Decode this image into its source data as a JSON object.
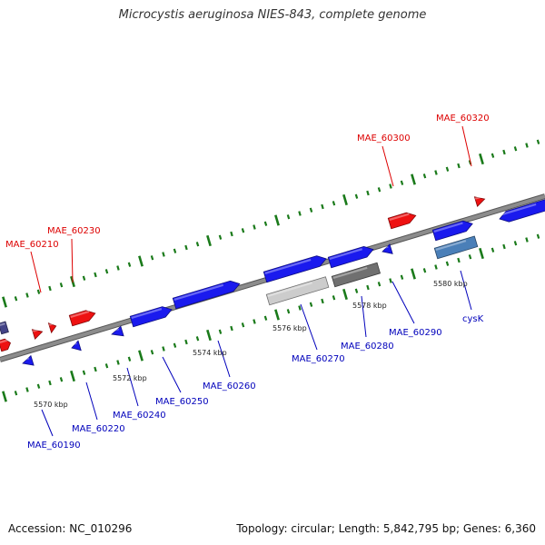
{
  "title": "Microcystis aeruginosa NIES-843, complete genome",
  "footer": {
    "accession": "Accession: NC_010296",
    "summary": "Topology: circular; Length: 5,842,795 bp; Genes: 6,360"
  },
  "colors": {
    "forward_gene": "#ee1111",
    "reverse_gene": "#1a1aee",
    "highlight_light": "#cccccc",
    "highlight_dark": "#707070",
    "highlight_blue": "#4a7fb8",
    "backbone": "#8c8c8c",
    "tick": "#1a7a1a",
    "forward_label": "#dd0000",
    "reverse_label": "#0000bb"
  },
  "scale_labels": [
    "5570 kbp",
    "5572 kbp",
    "5574 kbp",
    "5576 kbp",
    "5578 kbp",
    "5580 kbp"
  ],
  "gene_labels": [
    {
      "name": "MAE_60210",
      "strand": "forward"
    },
    {
      "name": "MAE_60230",
      "strand": "forward"
    },
    {
      "name": "MAE_60300",
      "strand": "forward"
    },
    {
      "name": "MAE_60320",
      "strand": "forward"
    },
    {
      "name": "MAE_60190",
      "strand": "reverse"
    },
    {
      "name": "MAE_60220",
      "strand": "reverse"
    },
    {
      "name": "MAE_60240",
      "strand": "reverse"
    },
    {
      "name": "MAE_60250",
      "strand": "reverse"
    },
    {
      "name": "MAE_60260",
      "strand": "reverse"
    },
    {
      "name": "MAE_60270",
      "strand": "reverse"
    },
    {
      "name": "MAE_60280",
      "strand": "reverse"
    },
    {
      "name": "MAE_60290",
      "strand": "reverse"
    },
    {
      "name": "cysK",
      "strand": "reverse"
    }
  ]
}
